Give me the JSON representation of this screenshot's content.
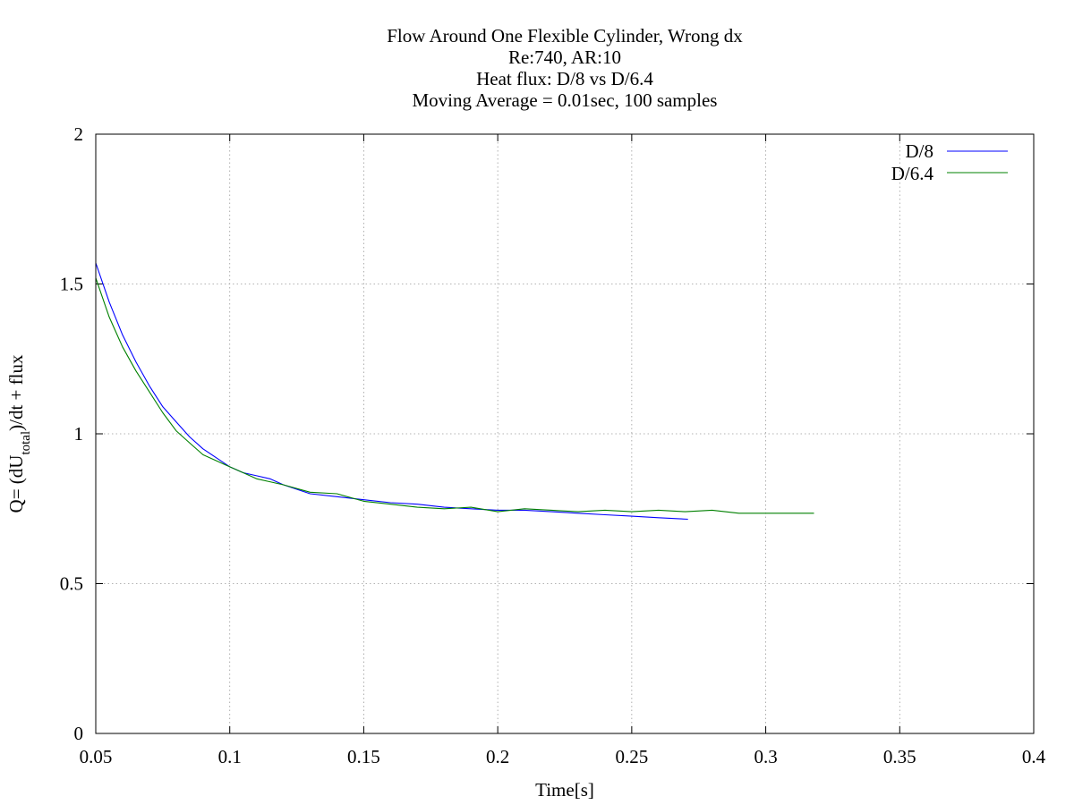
{
  "chart_data": {
    "type": "line",
    "title_lines": [
      "Flow Around One Flexible Cylinder, Wrong dx",
      "Re:740, AR:10",
      "Heat flux: D/8 vs D/6.4",
      "Moving Average = 0.01sec, 100 samples"
    ],
    "xlabel": "Time[s]",
    "ylabel": {
      "prefix": "Q= (dU",
      "subscript": "total",
      "suffix": ")/dt + flux"
    },
    "xlim": [
      0.05,
      0.4
    ],
    "ylim": [
      0,
      2
    ],
    "x_ticks": [
      0.05,
      0.1,
      0.15,
      0.2,
      0.25,
      0.3,
      0.35,
      0.4
    ],
    "x_tick_labels": [
      "0.05",
      "0.1",
      "0.15",
      "0.2",
      "0.25",
      "0.3",
      "0.35",
      "0.4"
    ],
    "y_ticks": [
      0,
      0.5,
      1,
      1.5,
      2
    ],
    "y_tick_labels": [
      "0",
      "0.5",
      "1",
      "1.5",
      "2"
    ],
    "grid": true,
    "legend_position": "top-right",
    "series": [
      {
        "name": "D/8",
        "color": "#0000ff",
        "x": [
          0.05,
          0.055,
          0.06,
          0.065,
          0.07,
          0.075,
          0.08,
          0.085,
          0.09,
          0.095,
          0.1,
          0.105,
          0.11,
          0.115,
          0.12,
          0.13,
          0.14,
          0.15,
          0.16,
          0.17,
          0.18,
          0.19,
          0.2,
          0.21,
          0.22,
          0.23,
          0.24,
          0.25,
          0.26,
          0.271
        ],
        "y": [
          1.57,
          1.44,
          1.33,
          1.24,
          1.16,
          1.09,
          1.04,
          0.99,
          0.95,
          0.92,
          0.89,
          0.87,
          0.86,
          0.85,
          0.83,
          0.8,
          0.79,
          0.78,
          0.77,
          0.765,
          0.755,
          0.75,
          0.745,
          0.745,
          0.74,
          0.735,
          0.73,
          0.725,
          0.72,
          0.715
        ]
      },
      {
        "name": "D/6.4",
        "color": "#008000",
        "x": [
          0.05,
          0.055,
          0.06,
          0.065,
          0.07,
          0.075,
          0.08,
          0.085,
          0.09,
          0.095,
          0.1,
          0.105,
          0.11,
          0.115,
          0.12,
          0.13,
          0.14,
          0.15,
          0.16,
          0.17,
          0.18,
          0.19,
          0.2,
          0.21,
          0.22,
          0.23,
          0.24,
          0.25,
          0.26,
          0.27,
          0.28,
          0.29,
          0.3,
          0.31,
          0.318
        ],
        "y": [
          1.52,
          1.39,
          1.29,
          1.21,
          1.14,
          1.07,
          1.01,
          0.97,
          0.93,
          0.91,
          0.89,
          0.87,
          0.85,
          0.84,
          0.83,
          0.805,
          0.8,
          0.775,
          0.765,
          0.755,
          0.75,
          0.755,
          0.74,
          0.75,
          0.745,
          0.74,
          0.745,
          0.74,
          0.745,
          0.74,
          0.745,
          0.735,
          0.735,
          0.735,
          0.735
        ]
      }
    ]
  }
}
